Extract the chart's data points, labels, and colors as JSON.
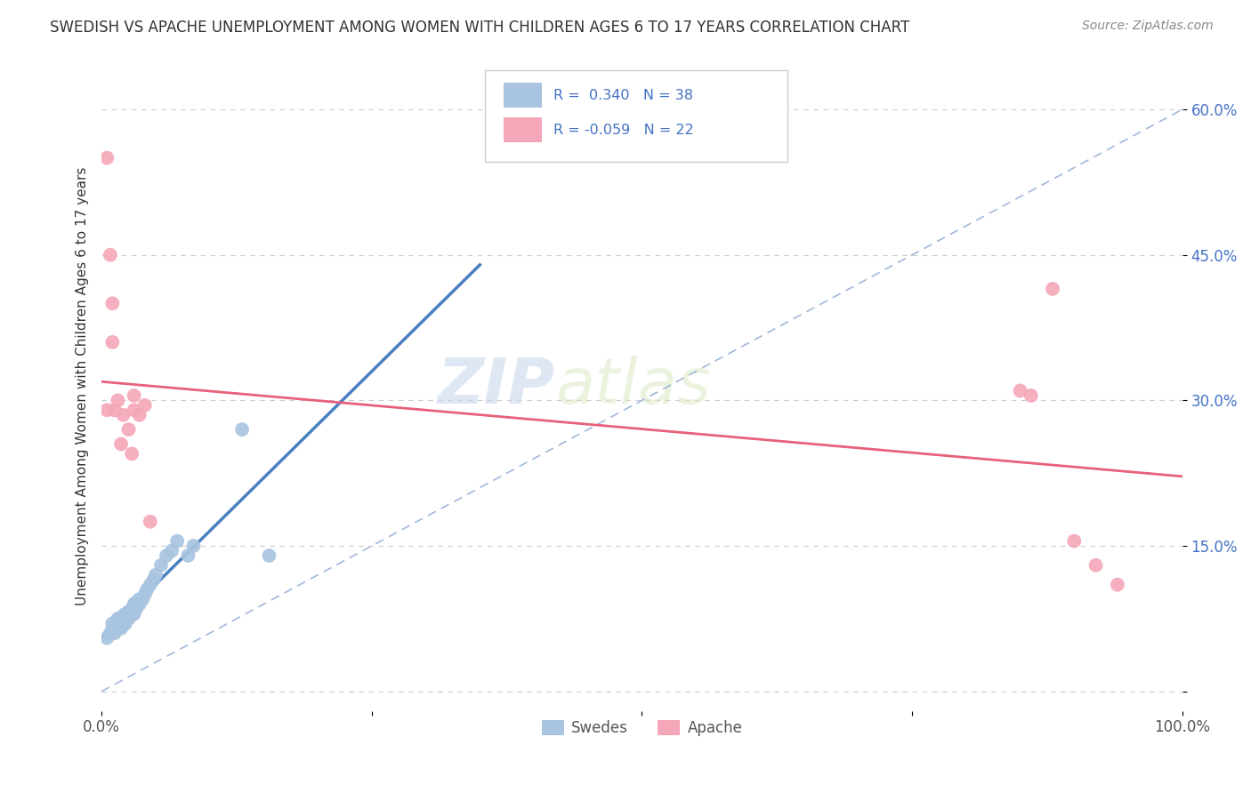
{
  "title": "SWEDISH VS APACHE UNEMPLOYMENT AMONG WOMEN WITH CHILDREN AGES 6 TO 17 YEARS CORRELATION CHART",
  "source": "Source: ZipAtlas.com",
  "ylabel": "Unemployment Among Women with Children Ages 6 to 17 years",
  "xlim": [
    0.0,
    1.0
  ],
  "ylim": [
    -0.02,
    0.65
  ],
  "xtick_positions": [
    0.0,
    0.25,
    0.5,
    0.75,
    1.0
  ],
  "xtick_labels": [
    "0.0%",
    "",
    "",
    "",
    "100.0%"
  ],
  "ytick_positions": [
    0.0,
    0.15,
    0.3,
    0.45,
    0.6
  ],
  "ytick_labels": [
    "",
    "15.0%",
    "30.0%",
    "45.0%",
    "60.0%"
  ],
  "swedes_color": "#a8c4e0",
  "apache_color": "#f4a7b8",
  "swedes_line_color": "#4a7fc1",
  "apache_line_color": "#e8607a",
  "diag_line_color": "#a0b8d8",
  "background_color": "#ffffff",
  "watermark_zip": "ZIP",
  "watermark_atlas": "atlas",
  "swedes_x": [
    0.005,
    0.008,
    0.01,
    0.01,
    0.012,
    0.013,
    0.015,
    0.015,
    0.018,
    0.018,
    0.02,
    0.02,
    0.022,
    0.022,
    0.025,
    0.025,
    0.027,
    0.028,
    0.03,
    0.03,
    0.032,
    0.032,
    0.035,
    0.035,
    0.038,
    0.04,
    0.042,
    0.045,
    0.048,
    0.05,
    0.055,
    0.06,
    0.065,
    0.07,
    0.08,
    0.085,
    0.13,
    0.155
  ],
  "swedes_y": [
    0.055,
    0.06,
    0.065,
    0.07,
    0.06,
    0.065,
    0.07,
    0.075,
    0.065,
    0.075,
    0.068,
    0.078,
    0.07,
    0.08,
    0.075,
    0.082,
    0.078,
    0.085,
    0.08,
    0.09,
    0.085,
    0.092,
    0.09,
    0.095,
    0.095,
    0.1,
    0.105,
    0.11,
    0.115,
    0.12,
    0.13,
    0.14,
    0.145,
    0.155,
    0.14,
    0.15,
    0.27,
    0.14
  ],
  "apache_x": [
    0.005,
    0.005,
    0.008,
    0.01,
    0.01,
    0.012,
    0.015,
    0.018,
    0.02,
    0.025,
    0.028,
    0.03,
    0.03,
    0.035,
    0.04,
    0.045,
    0.85,
    0.86,
    0.88,
    0.9,
    0.92,
    0.94
  ],
  "apache_y": [
    0.55,
    0.29,
    0.45,
    0.4,
    0.36,
    0.29,
    0.3,
    0.255,
    0.285,
    0.27,
    0.245,
    0.29,
    0.305,
    0.285,
    0.295,
    0.175,
    0.31,
    0.305,
    0.415,
    0.155,
    0.13,
    0.11
  ]
}
